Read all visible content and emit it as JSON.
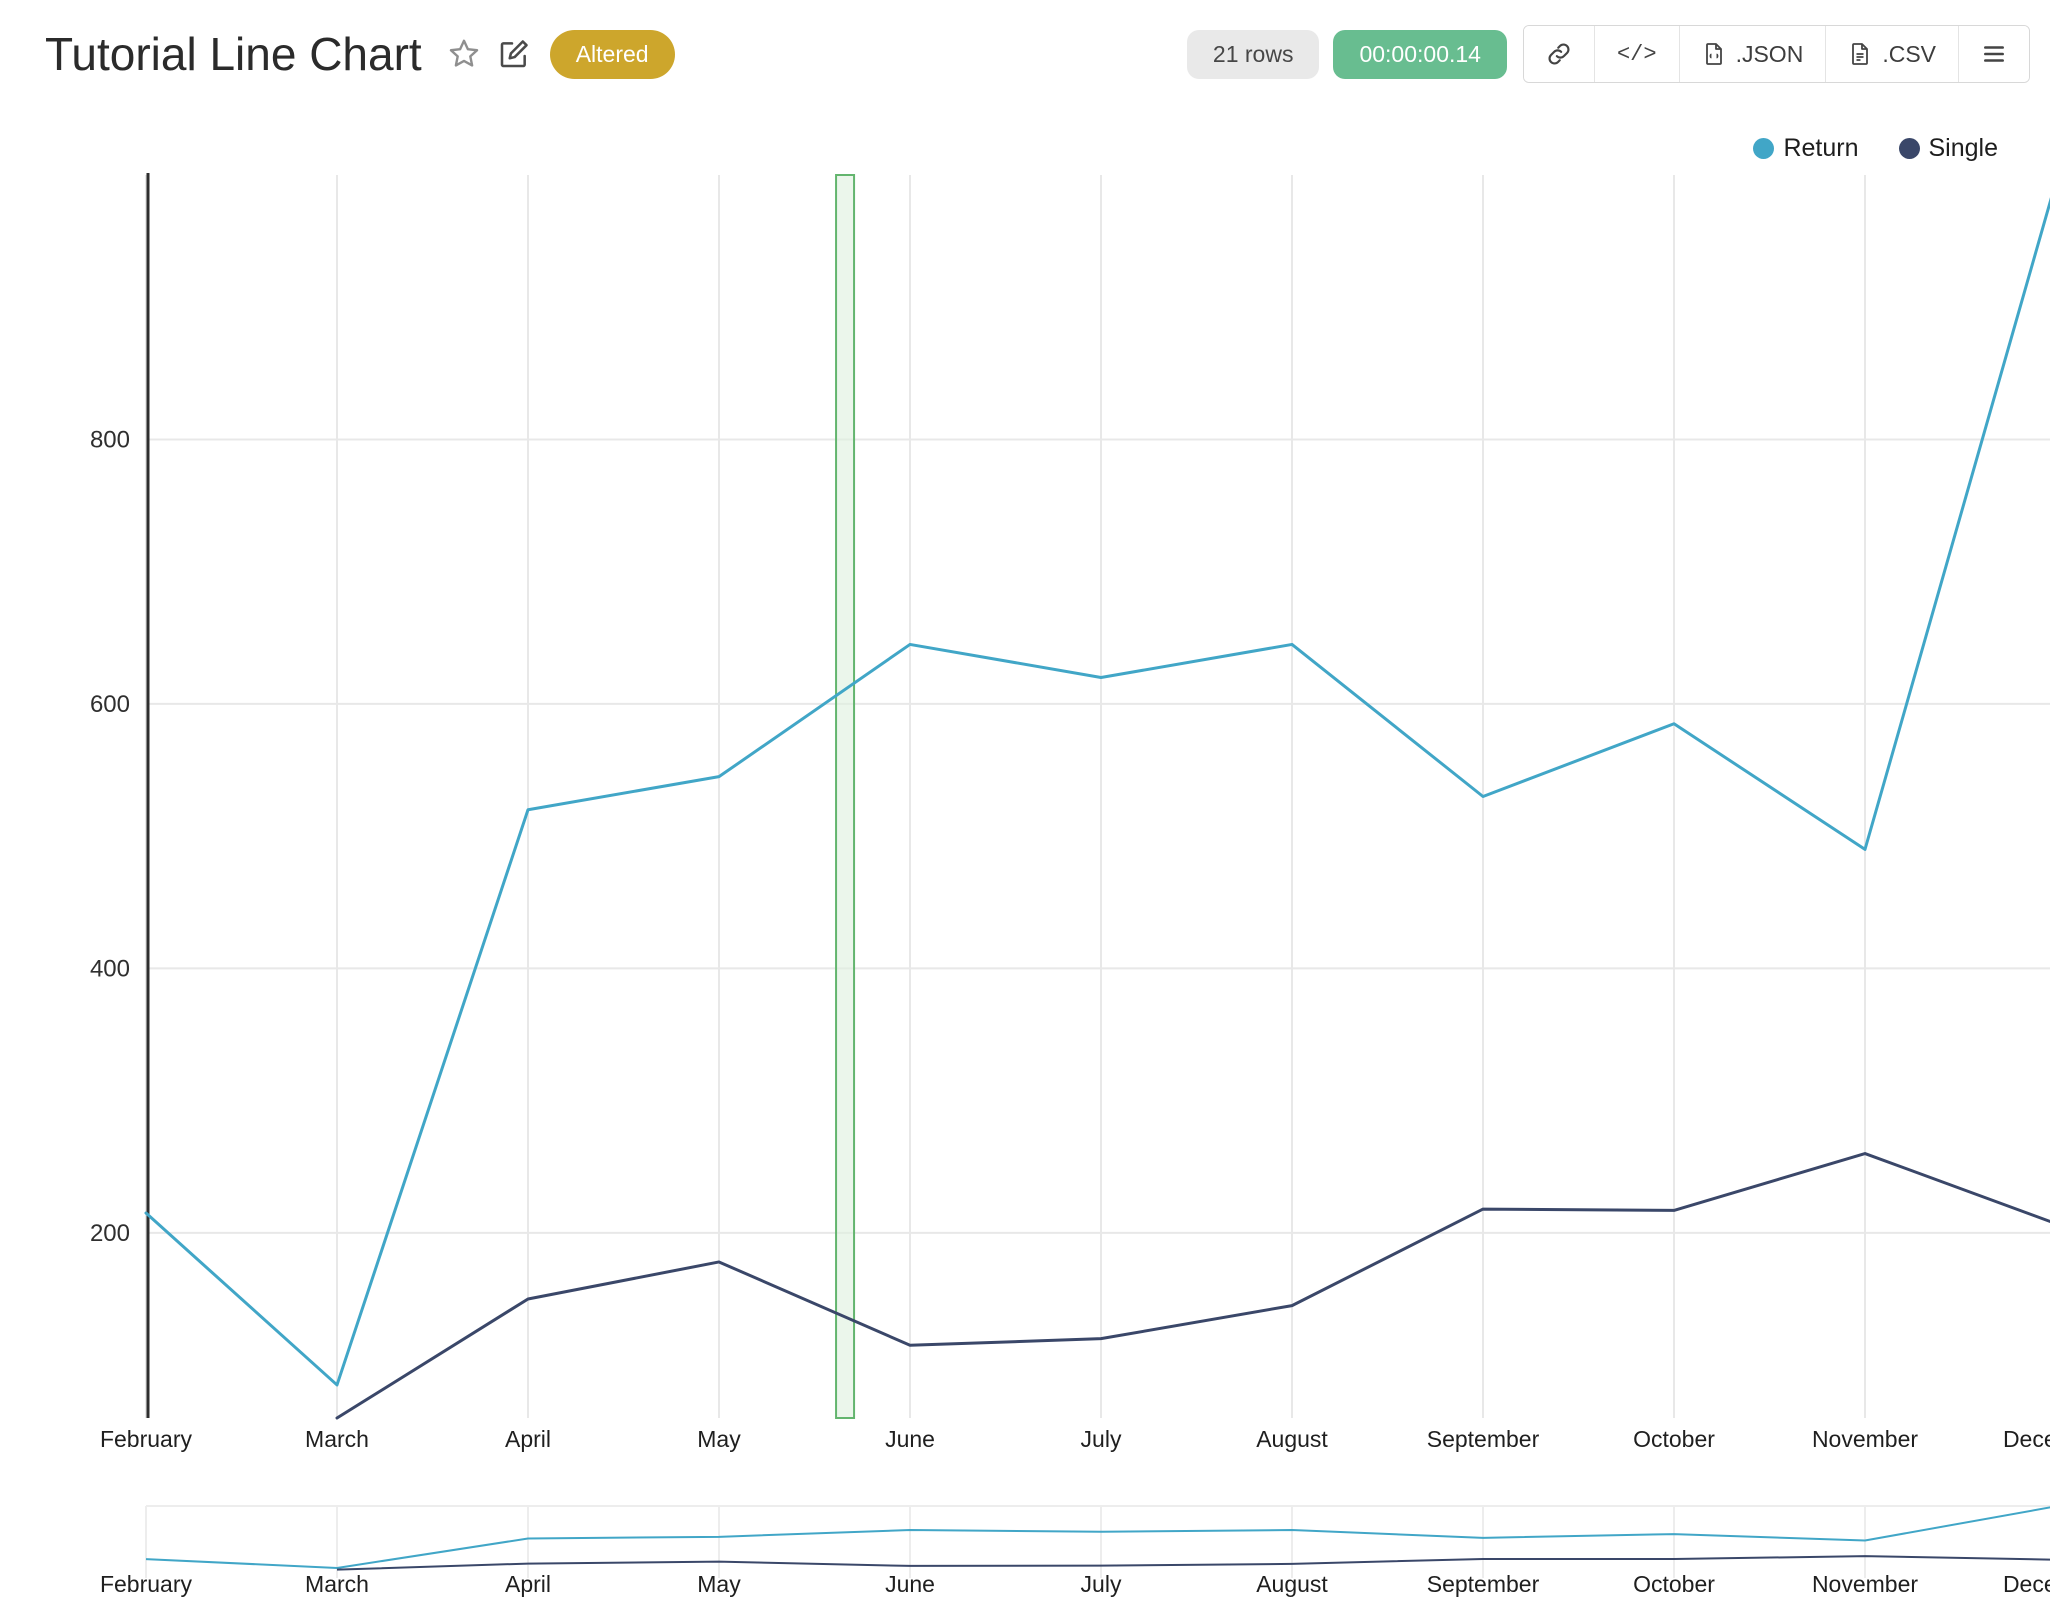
{
  "header": {
    "title": "Tutorial Line Chart",
    "altered_badge": "Altered",
    "rows_badge": "21 rows",
    "timer_badge": "00:00:00.14",
    "code_label": "</>",
    "export_json_label": ".JSON",
    "export_csv_label": ".CSV"
  },
  "legend": [
    {
      "label": "Return",
      "color": "#41a6c7"
    },
    {
      "label": "Single",
      "color": "#3a4769"
    }
  ],
  "chart_data": {
    "type": "line",
    "title": "Tutorial Line Chart",
    "categories": [
      "February",
      "March",
      "April",
      "May",
      "June",
      "July",
      "August",
      "September",
      "October",
      "November",
      "December"
    ],
    "series": [
      {
        "name": "Return",
        "color": "#41a6c7",
        "values": [
          215,
          85,
          520,
          545,
          645,
          620,
          645,
          530,
          585,
          490,
          995
        ]
      },
      {
        "name": "Single",
        "color": "#3a4769",
        "values": [
          null,
          60,
          150,
          178,
          115,
          120,
          145,
          218,
          217,
          260,
          207
        ]
      }
    ],
    "yticks": [
      200,
      400,
      600,
      800
    ],
    "ylim": [
      60,
      1000
    ],
    "grid": true,
    "legend_position": "top-right",
    "has_range_selector": true,
    "highlight": {
      "between": [
        "May",
        "June"
      ],
      "fraction": 0.66,
      "fill": "#ddf0dd",
      "border": "#63b56e"
    },
    "colors": {
      "grid": "#e8e8e8",
      "axis": "#2e2e2e",
      "tick_text": "#2f2f2f"
    }
  }
}
